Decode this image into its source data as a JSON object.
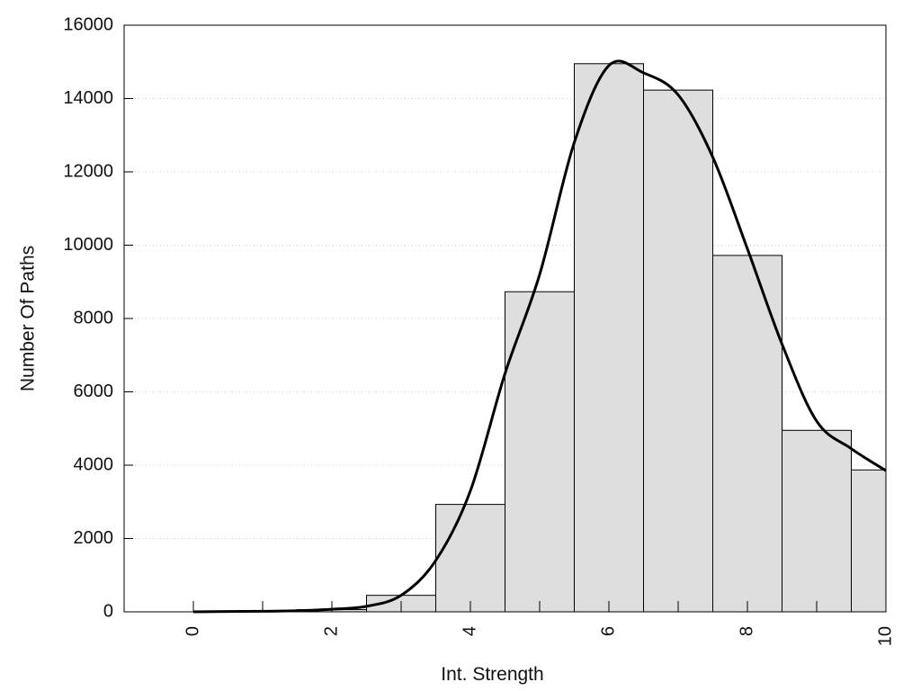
{
  "chart_data": {
    "type": "bar",
    "xlabel": "Int. Strength",
    "ylabel": "Number Of Paths",
    "xlim": [
      -1,
      10
    ],
    "ylim": [
      0,
      16000
    ],
    "x_ticks": [
      0,
      2,
      4,
      6,
      8,
      10
    ],
    "y_ticks": [
      0,
      2000,
      4000,
      6000,
      8000,
      10000,
      12000,
      14000,
      16000
    ],
    "grid": "horizontal dotted",
    "legend": "none",
    "bar_width": 1,
    "bars": [
      {
        "x": 0,
        "value": 0
      },
      {
        "x": 1,
        "value": 10
      },
      {
        "x": 2,
        "value": 60
      },
      {
        "x": 3,
        "value": 450
      },
      {
        "x": 4,
        "value": 2930
      },
      {
        "x": 5,
        "value": 8730
      },
      {
        "x": 6,
        "value": 14950
      },
      {
        "x": 7,
        "value": 14230
      },
      {
        "x": 8,
        "value": 9720
      },
      {
        "x": 9,
        "value": 4950
      },
      {
        "x": 10,
        "value": 3870
      }
    ],
    "curve": [
      {
        "x": 0,
        "y": 0
      },
      {
        "x": 0.5,
        "y": 10
      },
      {
        "x": 1,
        "y": 15
      },
      {
        "x": 1.5,
        "y": 30
      },
      {
        "x": 2,
        "y": 70
      },
      {
        "x": 2.5,
        "y": 150
      },
      {
        "x": 3,
        "y": 450
      },
      {
        "x": 3.5,
        "y": 1400
      },
      {
        "x": 4,
        "y": 3300
      },
      {
        "x": 4.5,
        "y": 6500
      },
      {
        "x": 5,
        "y": 9200
      },
      {
        "x": 5.5,
        "y": 12800
      },
      {
        "x": 6,
        "y": 14900
      },
      {
        "x": 6.5,
        "y": 14700
      },
      {
        "x": 7,
        "y": 14100
      },
      {
        "x": 7.5,
        "y": 12400
      },
      {
        "x": 8,
        "y": 9900
      },
      {
        "x": 8.5,
        "y": 7300
      },
      {
        "x": 9,
        "y": 5200
      },
      {
        "x": 9.5,
        "y": 4450
      },
      {
        "x": 10,
        "y": 3850
      }
    ],
    "colors": {
      "bar_fill": "#dedede",
      "bar_stroke": "#000000",
      "curve": "#000000",
      "grid": "#c8c8c8"
    }
  }
}
